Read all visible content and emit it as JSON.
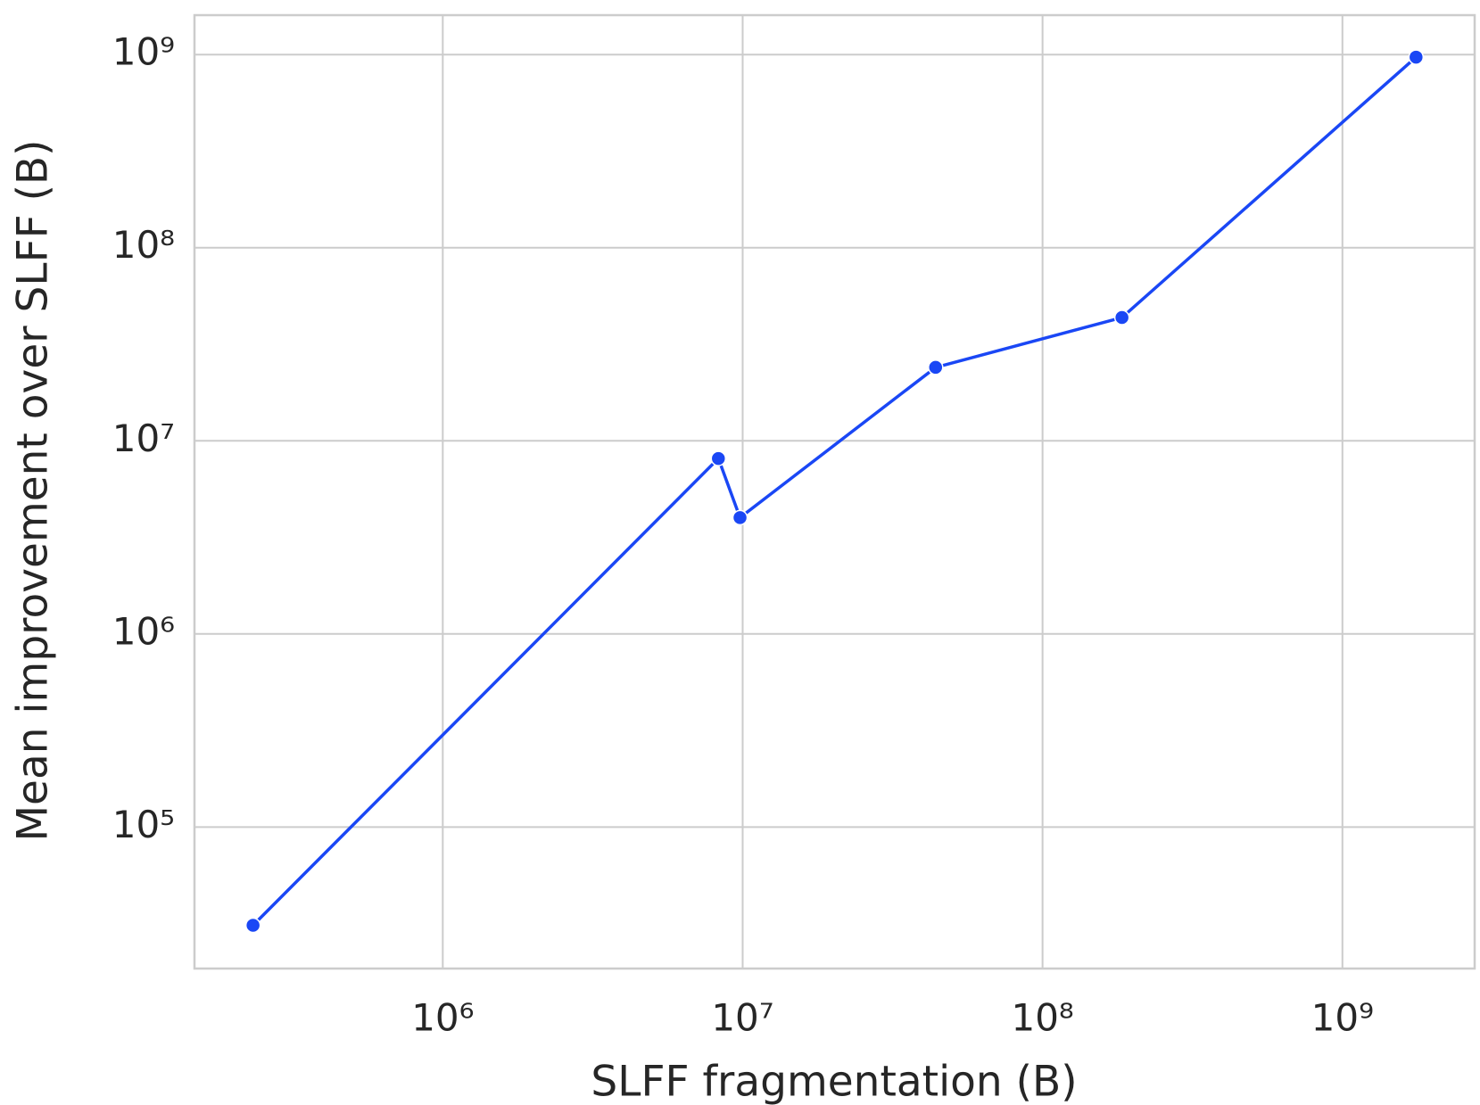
{
  "chart_data": {
    "type": "line",
    "x_label": "SLFF fragmentation (B)",
    "y_label": "Mean improvement over SLFF (B)",
    "x_scale": "log",
    "y_scale": "log",
    "grid": true,
    "x": [
      233000,
      8300000,
      9800000,
      44000000,
      184000000,
      1760000000
    ],
    "series": [
      {
        "name": "Mean improvement",
        "color": "#1a47f5",
        "values": [
          31000,
          8100000,
          4000000,
          24000000,
          43500000,
          970000000
        ]
      }
    ],
    "xlim": [
      148600,
      2760000000
    ],
    "ylim": [
      18500,
      1600000000
    ],
    "xticks": [
      {
        "value": 1000000,
        "label": "10⁶"
      },
      {
        "value": 10000000,
        "label": "10⁷"
      },
      {
        "value": 100000000,
        "label": "10⁸"
      },
      {
        "value": 1000000000,
        "label": "10⁹"
      }
    ],
    "yticks": [
      {
        "value": 100000,
        "label": "10⁵"
      },
      {
        "value": 1000000,
        "label": "10⁶"
      },
      {
        "value": 10000000,
        "label": "10⁷"
      },
      {
        "value": 100000000,
        "label": "10⁸"
      },
      {
        "value": 1000000000,
        "label": "10⁹"
      }
    ]
  }
}
